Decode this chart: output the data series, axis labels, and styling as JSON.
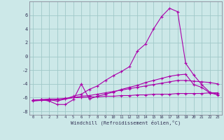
{
  "xlabel": "Windchill (Refroidissement éolien,°C)",
  "background_color": "#cce8e8",
  "grid_color": "#a0c8c8",
  "line_color": "#aa00aa",
  "x_ticks": [
    0,
    1,
    2,
    3,
    4,
    5,
    6,
    7,
    8,
    9,
    10,
    11,
    12,
    13,
    14,
    15,
    16,
    17,
    18,
    19,
    20,
    21,
    22,
    23
  ],
  "xlim": [
    -0.5,
    23.5
  ],
  "ylim": [
    -8.5,
    8.0
  ],
  "yticks": [
    -8,
    -6,
    -4,
    -2,
    0,
    2,
    4,
    6
  ],
  "series": {
    "flat": [
      -6.4,
      -6.3,
      -6.2,
      -6.2,
      -6.1,
      -6.0,
      -6.0,
      -5.9,
      -5.9,
      -5.8,
      -5.8,
      -5.7,
      -5.7,
      -5.6,
      -5.6,
      -5.5,
      -5.5,
      -5.5,
      -5.4,
      -5.4,
      -5.4,
      -5.4,
      -5.3,
      -5.3
    ],
    "gradual": [
      -6.5,
      -6.4,
      -6.4,
      -6.3,
      -6.2,
      -6.0,
      -5.8,
      -5.7,
      -5.5,
      -5.3,
      -5.1,
      -4.9,
      -4.7,
      -4.5,
      -4.3,
      -4.1,
      -3.9,
      -3.7,
      -3.5,
      -3.5,
      -3.6,
      -3.7,
      -3.8,
      -4.0
    ],
    "zigzag": [
      -6.4,
      -6.3,
      -6.5,
      -7.0,
      -7.0,
      -6.3,
      -4.0,
      -6.2,
      -5.8,
      -5.5,
      -5.2,
      -4.8,
      -4.5,
      -4.2,
      -3.8,
      -3.5,
      -3.2,
      -2.9,
      -2.7,
      -2.6,
      -4.1,
      -4.5,
      -5.3,
      -5.6
    ],
    "main": [
      -6.4,
      -6.3,
      -6.3,
      -6.5,
      -6.2,
      -5.8,
      -5.5,
      -4.8,
      -4.3,
      -3.5,
      -2.8,
      -2.2,
      -1.5,
      0.8,
      1.8,
      4.0,
      5.8,
      7.0,
      6.5,
      -1.0,
      -2.7,
      -4.1,
      -5.2,
      -5.5
    ]
  }
}
